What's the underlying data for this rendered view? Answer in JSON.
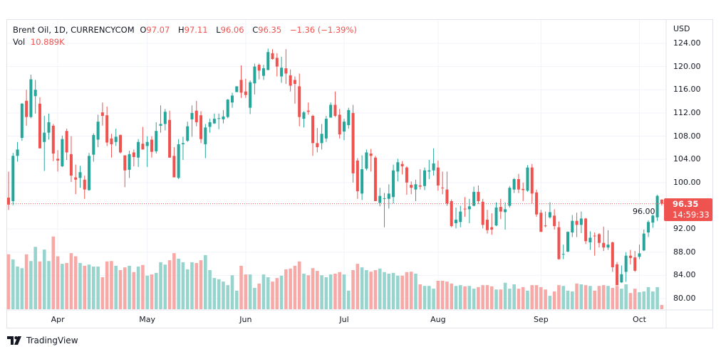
{
  "header": {
    "symbol": "Brent Oil, 1D, CURRENCYCOM",
    "o_label": "O",
    "o_value": "97.07",
    "h_label": "H",
    "h_value": "97.11",
    "l_label": "L",
    "l_value": "96.06",
    "c_label": "C",
    "c_value": "96.35",
    "change": "−1.36 (−1.39%)",
    "vol_label": "Vol",
    "vol_value": "10.889K"
  },
  "price_axis": {
    "currency": "USD"
  },
  "last_price": {
    "value": "96.35",
    "countdown": "14:59:33"
  },
  "footer": {
    "brand": "TradingView"
  },
  "colors": {
    "up": "#26a69a",
    "down": "#ef5350",
    "up_vol": "#97d4cd",
    "down_vol": "#f7a9a7"
  },
  "chart_data": {
    "type": "candlestick",
    "title": "Brent Oil, 1D, CURRENCYCOM",
    "ylabel": "USD",
    "ylim": [
      79,
      125
    ],
    "y_ticks": [
      "80.00",
      "84.00",
      "88.00",
      "92.00",
      "96.00",
      "100.00",
      "104.00",
      "108.00",
      "112.00",
      "116.00",
      "120.00",
      "124.00"
    ],
    "x_ticks": [
      "Apr",
      "May",
      "Jun",
      "Jul",
      "Aug",
      "Sep",
      "Oct"
    ],
    "x_tick_index": [
      11,
      31,
      53,
      75,
      96,
      119,
      141
    ],
    "grid": true,
    "ohlc": [
      [
        97.4,
        101.9,
        95.3,
        96.2
      ],
      [
        96.8,
        105.1,
        96.1,
        104.6
      ],
      [
        104.6,
        107.0,
        103.6,
        105.7
      ],
      [
        107.7,
        113.7,
        107.2,
        113.6
      ],
      [
        114.1,
        116.0,
        109.8,
        111.3
      ],
      [
        111.3,
        118.6,
        111.1,
        117.8
      ],
      [
        114.9,
        117.7,
        111.9,
        116.0
      ],
      [
        113.6,
        114.7,
        105.9,
        105.9
      ],
      [
        107.0,
        111.5,
        102.0,
        108.6
      ],
      [
        108.6,
        111.9,
        107.4,
        110.4
      ],
      [
        109.8,
        110.1,
        103.7,
        105.0
      ],
      [
        104.1,
        105.6,
        101.9,
        103.8
      ],
      [
        102.8,
        108.1,
        102.7,
        107.5
      ],
      [
        108.9,
        109.3,
        103.9,
        105.2
      ],
      [
        104.9,
        108.0,
        100.1,
        101.2
      ],
      [
        100.9,
        103.1,
        98.0,
        100.5
      ],
      [
        100.8,
        102.9,
        99.1,
        101.8
      ],
      [
        100.5,
        101.2,
        97.2,
        98.8
      ],
      [
        98.7,
        105.1,
        98.6,
        104.6
      ],
      [
        104.8,
        108.5,
        103.6,
        108.2
      ],
      [
        107.4,
        111.7,
        106.1,
        110.5
      ],
      [
        112.1,
        113.8,
        109.8,
        111.5
      ],
      [
        111.6,
        113.1,
        106.3,
        106.9
      ],
      [
        107.6,
        108.4,
        104.3,
        106.6
      ],
      [
        107.0,
        109.3,
        106.3,
        107.9
      ],
      [
        108.2,
        108.3,
        105.0,
        105.2
      ],
      [
        104.7,
        104.7,
        99.2,
        102.1
      ],
      [
        102.2,
        105.5,
        100.8,
        104.9
      ],
      [
        105.2,
        105.7,
        102.8,
        104.4
      ],
      [
        104.3,
        107.5,
        102.7,
        107.0
      ],
      [
        106.7,
        109.6,
        105.7,
        105.7
      ],
      [
        106.3,
        108.0,
        102.7,
        107.0
      ],
      [
        107.4,
        108.0,
        104.3,
        105.3
      ],
      [
        105.4,
        110.4,
        105.0,
        108.9
      ],
      [
        109.8,
        113.3,
        108.6,
        110.1
      ],
      [
        110.1,
        112.7,
        109.0,
        112.2
      ],
      [
        110.8,
        112.4,
        104.3,
        104.3
      ],
      [
        104.6,
        106.1,
        100.9,
        100.9
      ],
      [
        100.8,
        107.5,
        100.6,
        106.6
      ],
      [
        106.6,
        107.9,
        103.9,
        106.8
      ],
      [
        107.2,
        110.5,
        107.0,
        109.7
      ],
      [
        110.9,
        113.3,
        107.9,
        112.0
      ],
      [
        112.4,
        114.1,
        109.7,
        110.4
      ],
      [
        111.6,
        112.3,
        106.8,
        107.5
      ],
      [
        106.6,
        110.1,
        104.2,
        109.5
      ],
      [
        109.6,
        111.0,
        108.6,
        110.4
      ],
      [
        110.2,
        111.9,
        110.1,
        111.0
      ],
      [
        111.0,
        111.9,
        109.2,
        111.1
      ],
      [
        110.9,
        112.5,
        110.2,
        111.4
      ],
      [
        111.3,
        114.4,
        111.1,
        114.3
      ],
      [
        113.8,
        115.5,
        112.9,
        115.0
      ],
      [
        115.6,
        116.6,
        115.6,
        116.6
      ],
      [
        117.7,
        120.2,
        114.6,
        115.5
      ],
      [
        115.7,
        117.9,
        114.6,
        115.1
      ],
      [
        112.9,
        117.6,
        111.8,
        117.3
      ],
      [
        117.1,
        120.5,
        115.2,
        120.0
      ],
      [
        120.3,
        120.5,
        117.8,
        119.3
      ],
      [
        118.4,
        120.3,
        117.7,
        119.7
      ],
      [
        119.4,
        123.1,
        119.4,
        122.5
      ],
      [
        122.3,
        123.0,
        121.2,
        121.3
      ],
      [
        121.5,
        122.3,
        118.3,
        120.0
      ],
      [
        118.3,
        121.7,
        117.2,
        119.8
      ],
      [
        119.7,
        123.0,
        117.0,
        118.8
      ],
      [
        118.5,
        119.5,
        115.7,
        116.7
      ],
      [
        117.7,
        118.3,
        113.6,
        117.0
      ],
      [
        116.6,
        118.8,
        109.7,
        111.3
      ],
      [
        111.0,
        112.3,
        109.5,
        112.1
      ],
      [
        112.4,
        113.8,
        111.7,
        112.2
      ],
      [
        111.5,
        111.7,
        104.6,
        106.8
      ],
      [
        106.8,
        109.4,
        105.2,
        106.1
      ],
      [
        106.8,
        110.1,
        105.7,
        108.4
      ],
      [
        107.6,
        111.5,
        107.0,
        111.0
      ],
      [
        111.2,
        113.8,
        111.2,
        113.4
      ],
      [
        113.4,
        115.7,
        111.3,
        111.5
      ],
      [
        111.7,
        112.7,
        107.6,
        108.3
      ],
      [
        108.8,
        111.0,
        107.3,
        110.5
      ],
      [
        109.9,
        112.9,
        109.3,
        112.5
      ],
      [
        112.0,
        113.4,
        100.0,
        101.6
      ],
      [
        103.8,
        104.2,
        97.2,
        98.5
      ],
      [
        98.1,
        104.7,
        97.0,
        102.3
      ],
      [
        102.4,
        105.7,
        102.1,
        105.2
      ],
      [
        105.0,
        105.8,
        101.9,
        104.6
      ],
      [
        104.3,
        104.6,
        96.8,
        96.8
      ],
      [
        96.5,
        99.1,
        95.9,
        97.7
      ],
      [
        97.2,
        98.2,
        92.3,
        97.3
      ],
      [
        97.2,
        99.7,
        95.5,
        98.1
      ],
      [
        97.5,
        103.1,
        96.4,
        102.1
      ],
      [
        101.9,
        104.1,
        100.2,
        103.5
      ],
      [
        103.2,
        103.7,
        101.4,
        102.8
      ],
      [
        102.6,
        102.8,
        97.9,
        100.0
      ],
      [
        99.6,
        100.2,
        98.0,
        99.1
      ],
      [
        98.8,
        100.5,
        96.8,
        99.7
      ],
      [
        99.5,
        102.3,
        98.8,
        99.3
      ],
      [
        99.4,
        102.6,
        98.7,
        102.1
      ],
      [
        101.9,
        103.9,
        100.6,
        102.1
      ],
      [
        102.1,
        105.9,
        101.2,
        103.3
      ],
      [
        102.6,
        103.8,
        98.6,
        99.5
      ],
      [
        99.15,
        101.9,
        98.0,
        99.1
      ],
      [
        98.8,
        101.9,
        96.0,
        96.4
      ],
      [
        96.8,
        97.1,
        92.3,
        92.5
      ],
      [
        93.0,
        95.7,
        92.1,
        93.6
      ],
      [
        93.2,
        96.0,
        92.3,
        95.0
      ],
      [
        95.5,
        97.5,
        94.1,
        95.4
      ],
      [
        95.4,
        97.2,
        93.0,
        95.9
      ],
      [
        96.0,
        99.3,
        95.9,
        98.4
      ],
      [
        98.4,
        99.5,
        96.3,
        96.8
      ],
      [
        96.7,
        97.2,
        92.1,
        92.7
      ],
      [
        93.6,
        95.3,
        91.2,
        91.8
      ],
      [
        92.3,
        94.7,
        91.0,
        91.9
      ],
      [
        92.6,
        96.6,
        92.5,
        95.7
      ],
      [
        95.8,
        97.2,
        93.7,
        95.0
      ],
      [
        94.9,
        96.6,
        91.9,
        95.4
      ],
      [
        96.0,
        99.4,
        95.7,
        99.1
      ],
      [
        98.8,
        100.8,
        98.2,
        100.6
      ],
      [
        100.6,
        101.5,
        98.2,
        98.8
      ],
      [
        98.9,
        100.0,
        96.8,
        98.7
      ],
      [
        98.6,
        103.0,
        98.4,
        102.6
      ],
      [
        102.6,
        103.2,
        96.4,
        98.1
      ],
      [
        98.3,
        98.8,
        94.1,
        94.5
      ],
      [
        94.8,
        95.3,
        91.5,
        91.5
      ],
      [
        92.6,
        95.0,
        92.3,
        92.5
      ],
      [
        94.0,
        96.6,
        93.8,
        94.9
      ],
      [
        94.3,
        95.4,
        91.9,
        92.5
      ],
      [
        92.3,
        93.3,
        86.7,
        86.8
      ],
      [
        87.6,
        89.3,
        86.8,
        87.7
      ],
      [
        88.1,
        91.6,
        88.0,
        91.5
      ],
      [
        91.4,
        94.4,
        90.6,
        93.4
      ],
      [
        93.4,
        94.8,
        90.6,
        92.7
      ],
      [
        92.7,
        95.0,
        91.3,
        93.8
      ],
      [
        93.8,
        93.9,
        89.4,
        89.9
      ],
      [
        89.7,
        91.6,
        88.4,
        90.5
      ],
      [
        90.85,
        91.4,
        87.4,
        90.8
      ],
      [
        91.1,
        91.3,
        88.8,
        89.6
      ],
      [
        89.6,
        92.4,
        88.2,
        88.8
      ],
      [
        88.8,
        91.8,
        88.4,
        89.3
      ],
      [
        89.7,
        89.8,
        84.6,
        85.4
      ],
      [
        85.9,
        86.3,
        82.3,
        82.3
      ],
      [
        82.8,
        85.7,
        82.7,
        84.2
      ],
      [
        84.6,
        88.0,
        82.9,
        87.4
      ],
      [
        87.4,
        88.4,
        85.9,
        87.0
      ],
      [
        87.1,
        88.2,
        84.6,
        84.8
      ],
      [
        87.2,
        89.3,
        86.8,
        87.8
      ],
      [
        88.3,
        91.9,
        88.2,
        91.2
      ],
      [
        91.4,
        93.5,
        90.6,
        93.2
      ],
      [
        93.1,
        94.5,
        92.2,
        94.3
      ],
      [
        94.0,
        97.9,
        93.4,
        97.7
      ],
      [
        97.07,
        97.11,
        96.06,
        96.35
      ]
    ],
    "volume_k": [
      139,
      126,
      108,
      104,
      139,
      122,
      158,
      121,
      151,
      122,
      184,
      134,
      115,
      117,
      142,
      134,
      117,
      110,
      113,
      108,
      108,
      81,
      121,
      122,
      110,
      99,
      106,
      110,
      94,
      108,
      112,
      85,
      88,
      92,
      119,
      113,
      124,
      142,
      128,
      119,
      101,
      119,
      117,
      124,
      137,
      99,
      79,
      76,
      70,
      61,
      86,
      47,
      110,
      88,
      88,
      54,
      65,
      88,
      81,
      70,
      79,
      85,
      101,
      103,
      110,
      121,
      90,
      86,
      104,
      97,
      86,
      81,
      88,
      90,
      94,
      88,
      47,
      99,
      115,
      106,
      99,
      95,
      99,
      103,
      94,
      90,
      92,
      85,
      85,
      94,
      95,
      90,
      63,
      59,
      59,
      52,
      72,
      72,
      70,
      65,
      59,
      61,
      58,
      59,
      52,
      56,
      61,
      61,
      58,
      50,
      50,
      67,
      52,
      63,
      52,
      56,
      47,
      61,
      61,
      56,
      50,
      34,
      45,
      61,
      59,
      47,
      45,
      65,
      63,
      61,
      59,
      47,
      59,
      61,
      59,
      54,
      59,
      52,
      63,
      41,
      52,
      43,
      45,
      56,
      45,
      56,
      10.889
    ],
    "last_close": 96.35
  }
}
